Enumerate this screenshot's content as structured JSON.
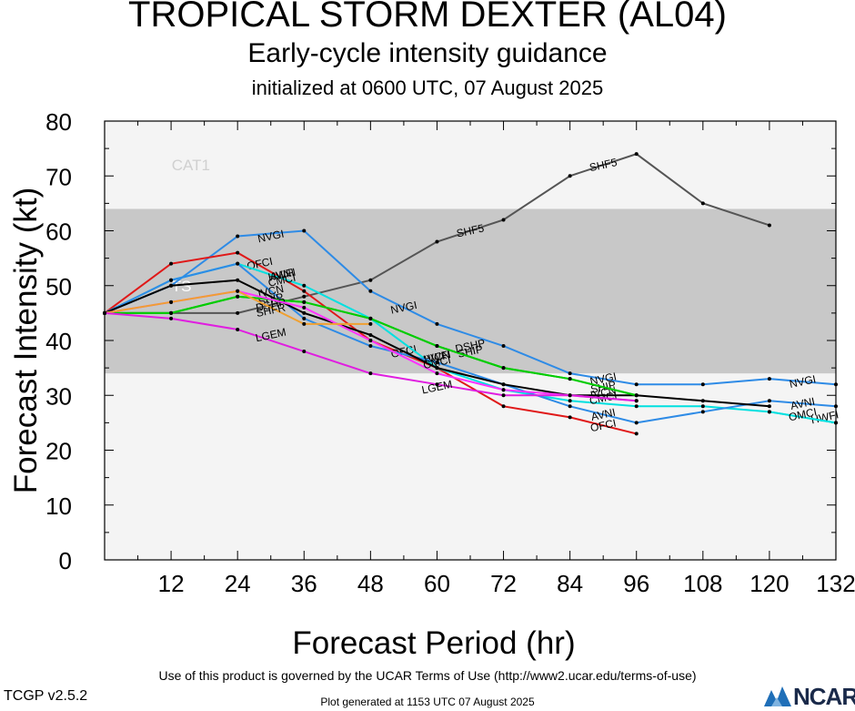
{
  "header": {
    "title": "TROPICAL STORM DEXTER (AL04)",
    "subtitle": "Early-cycle intensity guidance",
    "init": "initialized at 0600 UTC, 07 August 2025"
  },
  "footer": {
    "terms": "Use of this product is governed by the UCAR Terms of Use (http://www2.ucar.edu/terms-of-use)",
    "version": "TCGP v2.5.2",
    "generated": "Plot generated at 1153 UTC   07 August 2025",
    "logo_text": "NCAR"
  },
  "chart_data": {
    "type": "line",
    "title": "TROPICAL STORM DEXTER (AL04)",
    "xlabel": "Forecast Period (hr)",
    "ylabel": "Forecast Intensity (kt)",
    "xlim": [
      0,
      132
    ],
    "ylim": [
      0,
      80
    ],
    "xticks": [
      12,
      24,
      36,
      48,
      60,
      72,
      84,
      96,
      108,
      120,
      132
    ],
    "yticks": [
      0,
      10,
      20,
      30,
      40,
      50,
      60,
      70,
      80
    ],
    "bands": [
      {
        "label": "TS",
        "from": 34,
        "to": 64,
        "color": "#c8c8c8"
      },
      {
        "label": "CAT1",
        "from": 64,
        "to": 80,
        "color": "#f4f4f4"
      }
    ],
    "band_outside_color": "#f4f4f4",
    "band_labels": [
      {
        "text": "CAT1",
        "x": 8,
        "y": 72
      },
      {
        "text": "TS",
        "x": 8,
        "y": 50
      }
    ],
    "series": [
      {
        "name": "SHF5",
        "color": "#555555",
        "x": [
          0,
          12,
          24,
          36,
          48,
          60,
          72,
          84,
          96,
          108,
          120
        ],
        "y": [
          45,
          45,
          45,
          48,
          51,
          58,
          62,
          70,
          74,
          65,
          61
        ],
        "labels": [
          {
            "x": 66,
            "y": 60
          },
          {
            "x": 90,
            "y": 72
          }
        ]
      },
      {
        "name": "NVGI",
        "color": "#2e8be6",
        "x": [
          0,
          12,
          24,
          36,
          48,
          60,
          72,
          84,
          96,
          108,
          120,
          132
        ],
        "y": [
          45,
          50,
          59,
          60,
          49,
          43,
          39,
          34,
          32,
          32,
          33,
          32
        ],
        "labels": [
          {
            "x": 30,
            "y": 59
          },
          {
            "x": 54,
            "y": 46
          },
          {
            "x": 90,
            "y": 33
          },
          {
            "x": 126,
            "y": 32.5
          }
        ]
      },
      {
        "name": "OFCI",
        "color": "#e01818",
        "x": [
          0,
          12,
          24,
          36,
          48,
          60,
          72,
          84,
          96
        ],
        "y": [
          45,
          54,
          56,
          49,
          40,
          35,
          28,
          26,
          23
        ],
        "labels": [
          {
            "x": 28,
            "y": 54
          },
          {
            "x": 54,
            "y": 38
          },
          {
            "x": 90,
            "y": 24.5
          }
        ]
      },
      {
        "name": "HWFI",
        "color": "#00e0e0",
        "x": [
          0,
          12,
          24,
          36,
          48,
          60,
          72,
          84,
          96,
          108,
          120,
          132
        ],
        "y": [
          45,
          51,
          54,
          50,
          44,
          35,
          31,
          29,
          28,
          28,
          27,
          25
        ],
        "labels": [
          {
            "x": 32,
            "y": 52
          },
          {
            "x": 60,
            "y": 37
          },
          {
            "x": 130,
            "y": 26
          }
        ]
      },
      {
        "name": "AVNI",
        "color": "#2e8be6",
        "x": [
          0,
          12,
          24,
          36,
          48,
          60,
          72,
          84,
          96,
          108,
          120,
          132
        ],
        "y": [
          45,
          51,
          54,
          44,
          39,
          36,
          32,
          28,
          25,
          27,
          29,
          28
        ],
        "labels": [
          {
            "x": 32,
            "y": 52
          },
          {
            "x": 90,
            "y": 26.5
          },
          {
            "x": 126,
            "y": 28.5
          }
        ]
      },
      {
        "name": "IVCN",
        "color": "#000000",
        "x": [
          0,
          12,
          24,
          36,
          48,
          60,
          72,
          84,
          96,
          108,
          120
        ],
        "y": [
          45,
          50,
          51,
          45,
          41,
          35,
          32,
          30,
          30,
          29,
          28
        ],
        "labels": [
          {
            "x": 30,
            "y": 49
          },
          {
            "x": 60,
            "y": 37
          },
          {
            "x": 90,
            "y": 30.5
          }
        ]
      },
      {
        "name": "SHIP",
        "color": "#00cc00",
        "x": [
          0,
          12,
          24,
          36,
          48,
          60,
          72,
          84,
          96
        ],
        "y": [
          45,
          45,
          48,
          47,
          44,
          39,
          35,
          33,
          30
        ],
        "labels": [
          {
            "x": 30,
            "y": 47.5
          },
          {
            "x": 66,
            "y": 38
          },
          {
            "x": 90,
            "y": 31.5
          }
        ]
      },
      {
        "name": "DSHP",
        "color": "#00cc00",
        "x": [
          0,
          12,
          24,
          36,
          48,
          60,
          72,
          84,
          96
        ],
        "y": [
          45,
          45,
          48,
          47,
          44,
          39,
          35,
          33,
          30
        ],
        "labels": [
          {
            "x": 30,
            "y": 46.5
          },
          {
            "x": 66,
            "y": 39
          }
        ]
      },
      {
        "name": "CMCI",
        "color": "#ff33ff",
        "x": [
          0,
          12,
          24,
          36,
          48,
          60,
          72,
          84,
          96
        ],
        "y": [
          45,
          47,
          49,
          46,
          40,
          34,
          31,
          30,
          29
        ],
        "labels": [
          {
            "x": 32,
            "y": 51
          },
          {
            "x": 60,
            "y": 36
          },
          {
            "x": 90,
            "y": 29.5
          }
        ]
      },
      {
        "name": "SHFR",
        "color": "#f0a030",
        "x": [
          0,
          12,
          24,
          36,
          48
        ],
        "y": [
          45,
          47,
          49,
          43,
          43
        ],
        "labels": [
          {
            "x": 30,
            "y": 45.5
          }
        ]
      },
      {
        "name": "LGEM",
        "color": "#e01ee0",
        "x": [
          0,
          12,
          24,
          36,
          48,
          60,
          72,
          84,
          96
        ],
        "y": [
          45,
          44,
          42,
          38,
          34,
          32,
          30,
          30,
          29
        ],
        "labels": [
          {
            "x": 30,
            "y": 41
          },
          {
            "x": 60,
            "y": 31.5
          }
        ]
      },
      {
        "name": "OMCI",
        "color": "#00e0e0",
        "x": [
          120,
          132
        ],
        "y": [
          27,
          25
        ],
        "labels": [
          {
            "x": 126,
            "y": 26.5
          }
        ]
      }
    ]
  }
}
